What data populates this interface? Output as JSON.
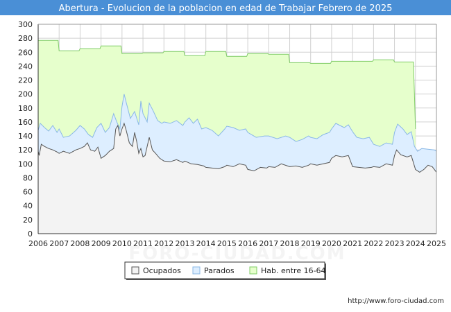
{
  "colors": {
    "title_bar": "#4a8fd6",
    "title_text": "#ffffff",
    "ocupados_fill": "#f3f3f3",
    "ocupados_line": "#555555",
    "parados_fill": "#ddeeff",
    "parados_line": "#8ab8e6",
    "hab_fill": "#e6ffcc",
    "hab_line": "#7fcc66",
    "grid": "#d0d0d0",
    "axis": "#333333"
  },
  "watermark": "FORO-CIUDAD.COM",
  "footer": {
    "url": "http://www.foro-ciudad.com"
  },
  "chart_data": {
    "type": "area",
    "title": "Abertura - Evolucion de la poblacion en edad de Trabajar Febrero de 2025",
    "xlabel": "",
    "ylabel": "",
    "xlim": [
      2006,
      2025
    ],
    "ylim": [
      0,
      300
    ],
    "y_ticks": [
      0,
      20,
      40,
      60,
      80,
      100,
      120,
      140,
      160,
      180,
      200,
      220,
      240,
      260,
      280,
      300
    ],
    "x_ticks": [
      2006,
      2007,
      2008,
      2009,
      2010,
      2011,
      2012,
      2013,
      2014,
      2015,
      2016,
      2017,
      2018,
      2019,
      2020,
      2021,
      2022,
      2023,
      2024,
      2025
    ],
    "grid": true,
    "legend_position": "bottom",
    "series": [
      {
        "name": "Hab. entre 16-64",
        "key": "hab",
        "points": [
          [
            2006.0,
            277
          ],
          [
            2006.95,
            277
          ],
          [
            2007.0,
            262
          ],
          [
            2007.95,
            262
          ],
          [
            2008.0,
            265
          ],
          [
            2008.95,
            265
          ],
          [
            2009.0,
            269
          ],
          [
            2009.95,
            269
          ],
          [
            2010.0,
            258
          ],
          [
            2010.95,
            258
          ],
          [
            2011.0,
            259
          ],
          [
            2011.95,
            259
          ],
          [
            2012.0,
            261
          ],
          [
            2012.95,
            261
          ],
          [
            2013.0,
            255
          ],
          [
            2013.95,
            255
          ],
          [
            2014.0,
            261
          ],
          [
            2014.95,
            261
          ],
          [
            2015.0,
            254
          ],
          [
            2015.95,
            254
          ],
          [
            2016.0,
            258
          ],
          [
            2016.95,
            258
          ],
          [
            2017.0,
            257
          ],
          [
            2017.95,
            257
          ],
          [
            2018.0,
            245
          ],
          [
            2018.95,
            245
          ],
          [
            2019.0,
            244
          ],
          [
            2019.95,
            244
          ],
          [
            2020.0,
            247
          ],
          [
            2020.95,
            247
          ],
          [
            2021.0,
            247
          ],
          [
            2021.95,
            247
          ],
          [
            2022.0,
            249
          ],
          [
            2022.95,
            249
          ],
          [
            2023.0,
            246
          ],
          [
            2023.9,
            246
          ],
          [
            2023.95,
            200
          ],
          [
            2024.0,
            150
          ]
        ]
      },
      {
        "name": "Parados",
        "key": "parados",
        "points": [
          [
            2006.0,
            148
          ],
          [
            2006.1,
            158
          ],
          [
            2006.3,
            152
          ],
          [
            2006.5,
            147
          ],
          [
            2006.7,
            155
          ],
          [
            2006.9,
            145
          ],
          [
            2007.0,
            150
          ],
          [
            2007.2,
            138
          ],
          [
            2007.5,
            140
          ],
          [
            2007.8,
            148
          ],
          [
            2008.0,
            155
          ],
          [
            2008.2,
            150
          ],
          [
            2008.4,
            142
          ],
          [
            2008.6,
            138
          ],
          [
            2008.8,
            152
          ],
          [
            2009.0,
            158
          ],
          [
            2009.2,
            145
          ],
          [
            2009.4,
            152
          ],
          [
            2009.6,
            172
          ],
          [
            2009.75,
            160
          ],
          [
            2009.9,
            150
          ],
          [
            2010.0,
            182
          ],
          [
            2010.1,
            200
          ],
          [
            2010.2,
            188
          ],
          [
            2010.4,
            165
          ],
          [
            2010.6,
            175
          ],
          [
            2010.8,
            156
          ],
          [
            2010.9,
            190
          ],
          [
            2011.0,
            172
          ],
          [
            2011.2,
            160
          ],
          [
            2011.3,
            187
          ],
          [
            2011.5,
            175
          ],
          [
            2011.7,
            162
          ],
          [
            2011.9,
            158
          ],
          [
            2012.0,
            160
          ],
          [
            2012.3,
            158
          ],
          [
            2012.6,
            162
          ],
          [
            2012.9,
            155
          ],
          [
            2013.0,
            160
          ],
          [
            2013.2,
            166
          ],
          [
            2013.4,
            158
          ],
          [
            2013.6,
            164
          ],
          [
            2013.8,
            150
          ],
          [
            2014.0,
            152
          ],
          [
            2014.3,
            148
          ],
          [
            2014.6,
            140
          ],
          [
            2014.9,
            150
          ],
          [
            2015.0,
            154
          ],
          [
            2015.3,
            152
          ],
          [
            2015.6,
            148
          ],
          [
            2015.9,
            150
          ],
          [
            2016.0,
            145
          ],
          [
            2016.4,
            138
          ],
          [
            2016.8,
            140
          ],
          [
            2017.0,
            140
          ],
          [
            2017.4,
            136
          ],
          [
            2017.8,
            140
          ],
          [
            2018.0,
            138
          ],
          [
            2018.3,
            132
          ],
          [
            2018.6,
            135
          ],
          [
            2018.9,
            140
          ],
          [
            2019.0,
            138
          ],
          [
            2019.3,
            136
          ],
          [
            2019.6,
            142
          ],
          [
            2019.9,
            145
          ],
          [
            2020.0,
            150
          ],
          [
            2020.2,
            158
          ],
          [
            2020.4,
            155
          ],
          [
            2020.6,
            152
          ],
          [
            2020.8,
            156
          ],
          [
            2021.0,
            146
          ],
          [
            2021.2,
            138
          ],
          [
            2021.5,
            136
          ],
          [
            2021.8,
            138
          ],
          [
            2022.0,
            128
          ],
          [
            2022.3,
            125
          ],
          [
            2022.6,
            130
          ],
          [
            2022.9,
            128
          ],
          [
            2023.0,
            145
          ],
          [
            2023.15,
            157
          ],
          [
            2023.4,
            150
          ],
          [
            2023.6,
            142
          ],
          [
            2023.8,
            146
          ],
          [
            2023.95,
            125
          ],
          [
            2024.1,
            118
          ],
          [
            2024.3,
            122
          ],
          [
            2024.6,
            121
          ],
          [
            2024.9,
            120
          ],
          [
            2025.0,
            118
          ]
        ]
      },
      {
        "name": "Ocupados",
        "key": "ocupados",
        "points": [
          [
            2006.0,
            118
          ],
          [
            2006.05,
            112
          ],
          [
            2006.15,
            128
          ],
          [
            2006.3,
            125
          ],
          [
            2006.5,
            122
          ],
          [
            2006.7,
            120
          ],
          [
            2006.9,
            117
          ],
          [
            2007.0,
            115
          ],
          [
            2007.2,
            118
          ],
          [
            2007.5,
            115
          ],
          [
            2007.8,
            120
          ],
          [
            2008.0,
            122
          ],
          [
            2008.2,
            125
          ],
          [
            2008.35,
            130
          ],
          [
            2008.5,
            120
          ],
          [
            2008.7,
            118
          ],
          [
            2008.85,
            124
          ],
          [
            2009.0,
            108
          ],
          [
            2009.2,
            112
          ],
          [
            2009.4,
            118
          ],
          [
            2009.6,
            122
          ],
          [
            2009.7,
            150
          ],
          [
            2009.8,
            155
          ],
          [
            2009.9,
            140
          ],
          [
            2010.0,
            150
          ],
          [
            2010.1,
            158
          ],
          [
            2010.2,
            148
          ],
          [
            2010.35,
            130
          ],
          [
            2010.5,
            125
          ],
          [
            2010.6,
            145
          ],
          [
            2010.7,
            132
          ],
          [
            2010.8,
            115
          ],
          [
            2010.9,
            122
          ],
          [
            2011.0,
            110
          ],
          [
            2011.1,
            112
          ],
          [
            2011.3,
            138
          ],
          [
            2011.45,
            120
          ],
          [
            2011.6,
            115
          ],
          [
            2011.8,
            108
          ],
          [
            2012.0,
            104
          ],
          [
            2012.3,
            103
          ],
          [
            2012.6,
            106
          ],
          [
            2012.9,
            102
          ],
          [
            2013.0,
            104
          ],
          [
            2013.3,
            100
          ],
          [
            2013.6,
            99
          ],
          [
            2013.9,
            97
          ],
          [
            2014.0,
            95
          ],
          [
            2014.3,
            94
          ],
          [
            2014.6,
            93
          ],
          [
            2014.9,
            96
          ],
          [
            2015.0,
            98
          ],
          [
            2015.3,
            96
          ],
          [
            2015.6,
            100
          ],
          [
            2015.9,
            98
          ],
          [
            2016.0,
            92
          ],
          [
            2016.3,
            90
          ],
          [
            2016.6,
            95
          ],
          [
            2016.9,
            94
          ],
          [
            2017.0,
            96
          ],
          [
            2017.3,
            95
          ],
          [
            2017.6,
            100
          ],
          [
            2017.9,
            97
          ],
          [
            2018.0,
            96
          ],
          [
            2018.3,
            97
          ],
          [
            2018.6,
            95
          ],
          [
            2018.9,
            98
          ],
          [
            2019.0,
            100
          ],
          [
            2019.3,
            98
          ],
          [
            2019.6,
            100
          ],
          [
            2019.9,
            102
          ],
          [
            2020.0,
            108
          ],
          [
            2020.2,
            112
          ],
          [
            2020.5,
            110
          ],
          [
            2020.8,
            112
          ],
          [
            2021.0,
            96
          ],
          [
            2021.3,
            95
          ],
          [
            2021.6,
            94
          ],
          [
            2021.9,
            95
          ],
          [
            2022.0,
            96
          ],
          [
            2022.3,
            95
          ],
          [
            2022.6,
            100
          ],
          [
            2022.9,
            98
          ],
          [
            2023.0,
            112
          ],
          [
            2023.1,
            120
          ],
          [
            2023.3,
            113
          ],
          [
            2023.6,
            110
          ],
          [
            2023.8,
            112
          ],
          [
            2024.0,
            92
          ],
          [
            2024.2,
            88
          ],
          [
            2024.4,
            92
          ],
          [
            2024.6,
            98
          ],
          [
            2024.8,
            96
          ],
          [
            2025.0,
            88
          ]
        ]
      }
    ],
    "legend_order": [
      "Ocupados",
      "Parados",
      "Hab. entre 16-64"
    ]
  }
}
